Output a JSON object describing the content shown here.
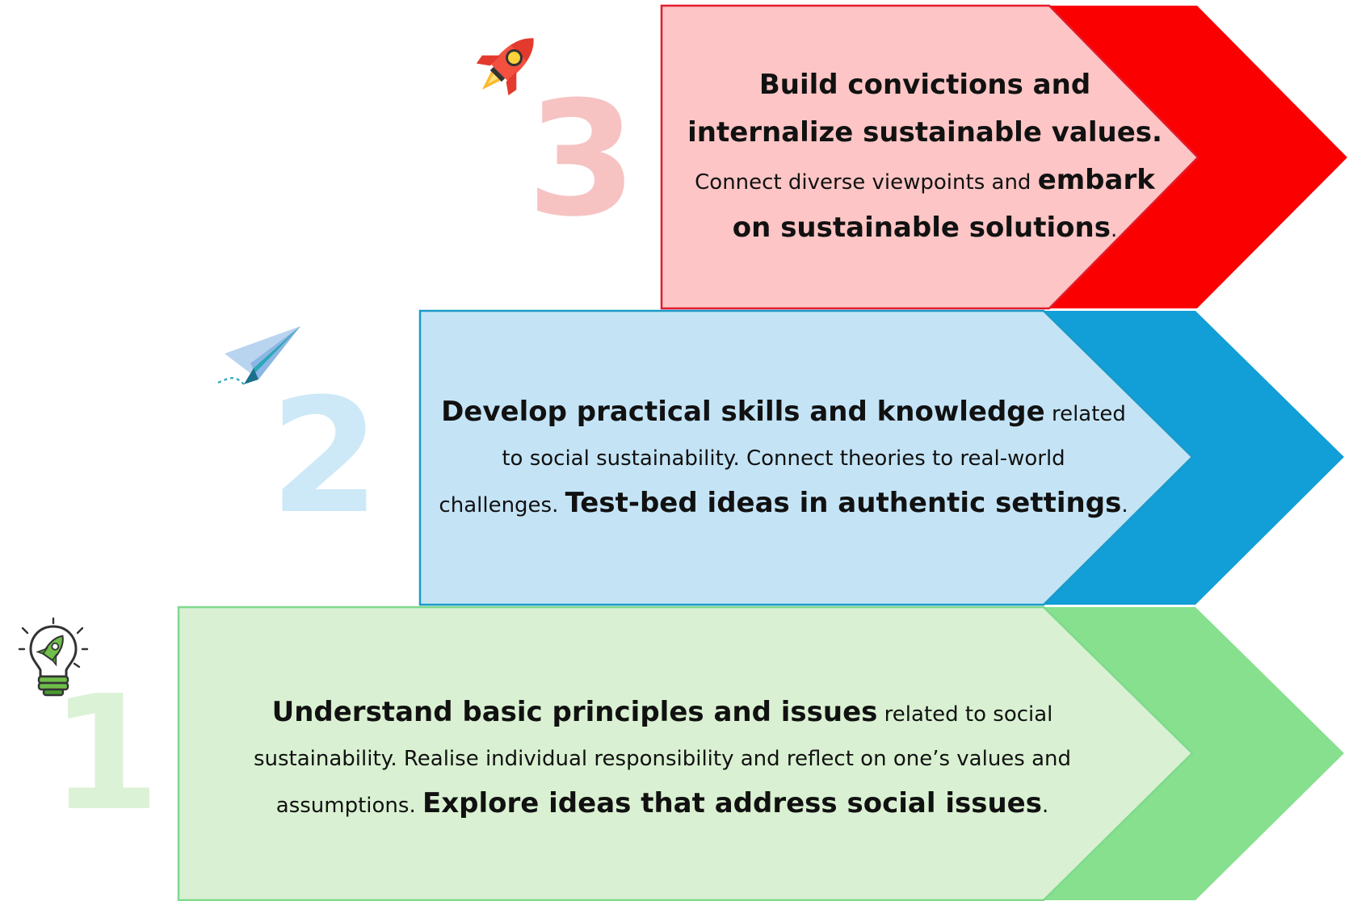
{
  "steps": [
    {
      "number": "3",
      "lines": [
        {
          "segments": [
            {
              "text": "Build convictions and",
              "bold": true
            }
          ]
        },
        {
          "segments": [
            {
              "text": "internalize sustainable values.",
              "bold": true
            }
          ]
        },
        {
          "segments": [
            {
              "text": "Connect diverse viewpoints and ",
              "bold": false
            },
            {
              "text": "embark",
              "bold": true
            }
          ]
        },
        {
          "segments": [
            {
              "text": "on sustainable solutions",
              "bold": true
            },
            {
              "text": ".",
              "bold": false
            }
          ]
        }
      ],
      "colors": {
        "fill": "#fdc5c5",
        "border": "#e21b2b",
        "arrow": "#fb0000",
        "number": "#f6c3c2"
      },
      "icon": "rocket-icon"
    },
    {
      "number": "2",
      "lines": [
        {
          "segments": [
            {
              "text": "Develop practical skills and knowledge",
              "bold": true
            },
            {
              "text": " related",
              "bold": false
            }
          ]
        },
        {
          "segments": [
            {
              "text": "to social sustainability. Connect theories to real-world",
              "bold": false
            }
          ]
        },
        {
          "segments": [
            {
              "text": "challenges. ",
              "bold": false
            },
            {
              "text": "Test-bed ideas in authentic settings",
              "bold": true
            },
            {
              "text": ".",
              "bold": false
            }
          ]
        }
      ],
      "colors": {
        "fill": "#c4e4f6",
        "border": "#1b9ac8",
        "arrow": "#129ed7",
        "number": "#cde9f8"
      },
      "icon": "paper-plane-icon"
    },
    {
      "number": "1",
      "lines": [
        {
          "segments": [
            {
              "text": "Understand basic principles and issues",
              "bold": true
            },
            {
              "text": " related to social",
              "bold": false
            }
          ]
        },
        {
          "segments": [
            {
              "text": "sustainability. Realise individual responsibility and reflect on one’s values and",
              "bold": false
            }
          ]
        },
        {
          "segments": [
            {
              "text": "assumptions.  ",
              "bold": false
            },
            {
              "text": "Explore ideas that address social issues",
              "bold": true
            },
            {
              "text": ".",
              "bold": false
            }
          ]
        }
      ],
      "colors": {
        "fill": "#d9f1d2",
        "border": "#7fd98d",
        "arrow": "#86e08d",
        "number": "#dcf2d6"
      },
      "icon": "lightbulb-rocket-icon"
    }
  ]
}
